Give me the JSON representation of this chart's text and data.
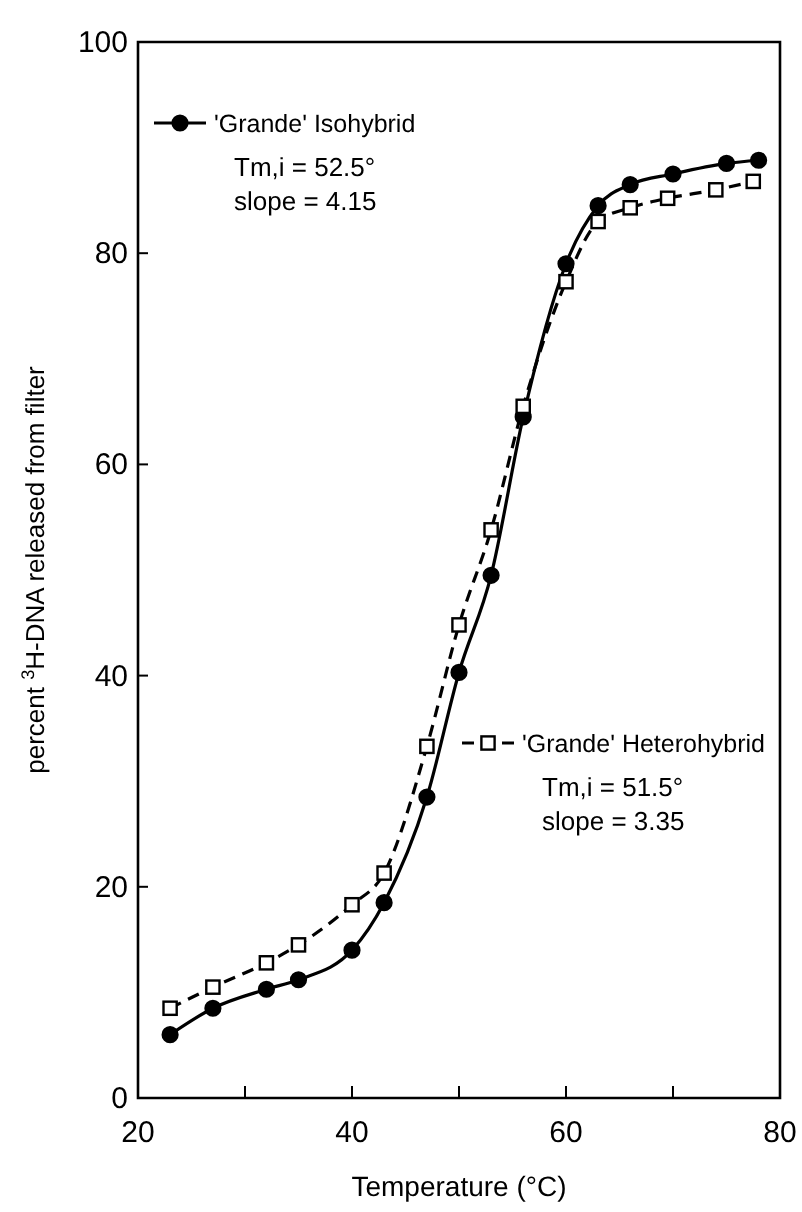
{
  "chart_data": {
    "type": "line",
    "xlabel": "Temperature (°C)",
    "ylabel": "percent $^{3}$H-DNA released from filter",
    "xlim": [
      20,
      80
    ],
    "xticks": [
      20,
      {
        "value": 30,
        "label": null
      },
      40,
      {
        "value": 50,
        "label": null
      },
      60,
      {
        "value": 70,
        "label": null
      },
      80
    ],
    "ylim": [
      0,
      100
    ],
    "yticks": [
      0,
      20,
      40,
      60,
      80,
      100
    ],
    "grid": false,
    "legend": "top left",
    "series": [
      {
        "name": "'Grande' Isohybrid",
        "color": "#000000",
        "marker": "circle",
        "line_style": "solid",
        "x": [
          23,
          27,
          32,
          35,
          40,
          43,
          47,
          50,
          53,
          56,
          60,
          63,
          66,
          70,
          75,
          78
        ],
        "values": [
          6,
          8.5,
          10.3,
          11.2,
          14,
          18.5,
          28.5,
          40.3,
          49.5,
          64.5,
          79,
          84.5,
          86.5,
          87.5,
          88.5,
          88.8
        ]
      },
      {
        "name": "'Grande' Heterohybrid",
        "color": "#000000",
        "marker": "square",
        "line_style": "dashed",
        "x": [
          23,
          27,
          32,
          35,
          40,
          43,
          47,
          50,
          53,
          56,
          60,
          63,
          66,
          69.5,
          74,
          77.5
        ],
        "values": [
          8.5,
          10.5,
          12.8,
          14.5,
          18.3,
          21.3,
          33.3,
          44.8,
          53.8,
          65.5,
          77.3,
          83,
          84.3,
          85.2,
          86,
          86.8
        ]
      }
    ],
    "annotations": [
      "Tm,i = 52.5°",
      "slope = 4.15",
      "Tm,i = 51.5°",
      "slope = 3.35"
    ]
  }
}
